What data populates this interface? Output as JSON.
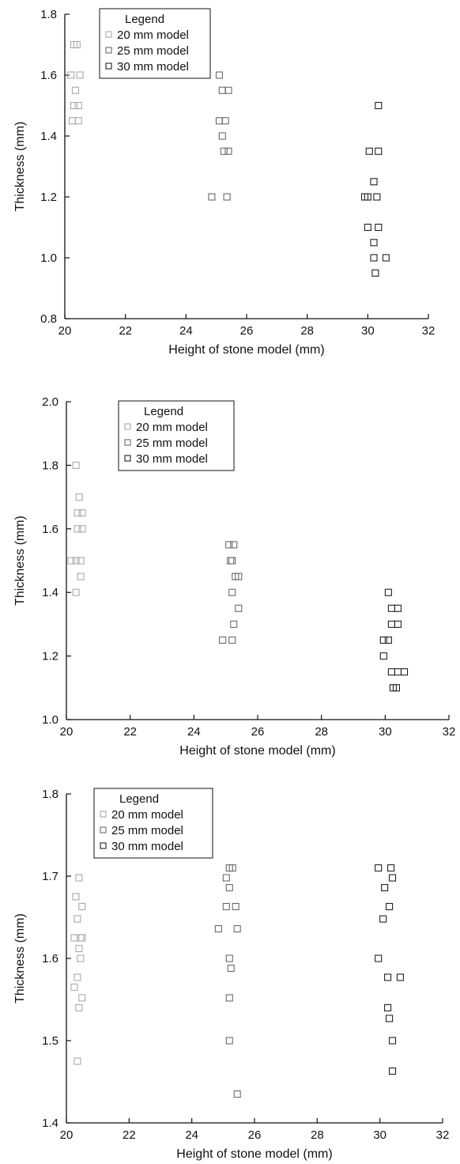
{
  "chart_data": [
    {
      "type": "scatter",
      "xlabel": "Height of stone model (mm)",
      "ylabel": "Thickness (mm)",
      "xlim": [
        20,
        32
      ],
      "ylim": [
        0.8,
        1.8
      ],
      "xticks": [
        "20",
        "22",
        "24",
        "26",
        "28",
        "30",
        "32"
      ],
      "yticks": [
        "0.8",
        "1.0",
        "1.2",
        "1.4",
        "1.6",
        "1.8"
      ],
      "grid": false,
      "legend": {
        "title": "Legend",
        "entries": [
          "20 mm model",
          "25 mm model",
          "30 mm model"
        ],
        "colors": [
          "#a8a8a8",
          "#6a6a6a",
          "#222222"
        ],
        "position": "top-left"
      },
      "series": [
        {
          "name": "20 mm model",
          "points": [
            [
              20.3,
              1.7
            ],
            [
              20.4,
              1.7
            ],
            [
              20.2,
              1.6
            ],
            [
              20.5,
              1.6
            ],
            [
              20.35,
              1.55
            ],
            [
              20.3,
              1.5
            ],
            [
              20.45,
              1.5
            ],
            [
              20.25,
              1.45
            ],
            [
              20.45,
              1.45
            ]
          ]
        },
        {
          "name": "25 mm model",
          "points": [
            [
              25.1,
              1.6
            ],
            [
              25.2,
              1.55
            ],
            [
              25.4,
              1.55
            ],
            [
              25.1,
              1.45
            ],
            [
              25.3,
              1.45
            ],
            [
              25.2,
              1.4
            ],
            [
              25.25,
              1.35
            ],
            [
              25.4,
              1.35
            ],
            [
              24.85,
              1.2
            ],
            [
              25.35,
              1.2
            ]
          ]
        },
        {
          "name": "30 mm model",
          "points": [
            [
              30.35,
              1.5
            ],
            [
              30.05,
              1.35
            ],
            [
              30.35,
              1.35
            ],
            [
              30.2,
              1.25
            ],
            [
              29.9,
              1.2
            ],
            [
              30.0,
              1.2
            ],
            [
              30.3,
              1.2
            ],
            [
              30.0,
              1.1
            ],
            [
              30.35,
              1.1
            ],
            [
              30.2,
              1.05
            ],
            [
              30.2,
              1.0
            ],
            [
              30.6,
              1.0
            ],
            [
              30.25,
              0.95
            ]
          ]
        }
      ]
    },
    {
      "type": "scatter",
      "xlabel": "Height of stone model (mm)",
      "ylabel": "Thickness (mm)",
      "xlim": [
        20,
        32
      ],
      "ylim": [
        1.0,
        2.0
      ],
      "xticks": [
        "20",
        "22",
        "24",
        "26",
        "28",
        "30",
        "32"
      ],
      "yticks": [
        "1.0",
        "1.2",
        "1.4",
        "1.6",
        "1.8",
        "2.0"
      ],
      "grid": false,
      "legend": {
        "title": "Legend",
        "entries": [
          "20 mm model",
          "25 mm model",
          "30 mm model"
        ],
        "colors": [
          "#a8a8a8",
          "#6a6a6a",
          "#222222"
        ],
        "position": "top-left"
      },
      "series": [
        {
          "name": "20 mm model",
          "points": [
            [
              20.3,
              1.8
            ],
            [
              20.4,
              1.7
            ],
            [
              20.35,
              1.65
            ],
            [
              20.5,
              1.65
            ],
            [
              20.35,
              1.6
            ],
            [
              20.5,
              1.6
            ],
            [
              20.15,
              1.5
            ],
            [
              20.3,
              1.5
            ],
            [
              20.45,
              1.5
            ],
            [
              20.45,
              1.45
            ],
            [
              20.3,
              1.4
            ]
          ]
        },
        {
          "name": "25 mm model",
          "points": [
            [
              25.1,
              1.55
            ],
            [
              25.25,
              1.55
            ],
            [
              25.15,
              1.5
            ],
            [
              25.2,
              1.5
            ],
            [
              25.3,
              1.45
            ],
            [
              25.4,
              1.45
            ],
            [
              25.2,
              1.4
            ],
            [
              25.4,
              1.35
            ],
            [
              25.25,
              1.3
            ],
            [
              24.9,
              1.25
            ],
            [
              25.2,
              1.25
            ]
          ]
        },
        {
          "name": "30 mm model",
          "points": [
            [
              30.1,
              1.4
            ],
            [
              30.2,
              1.35
            ],
            [
              30.4,
              1.35
            ],
            [
              30.2,
              1.3
            ],
            [
              30.4,
              1.3
            ],
            [
              29.95,
              1.25
            ],
            [
              30.1,
              1.25
            ],
            [
              29.95,
              1.2
            ],
            [
              30.2,
              1.15
            ],
            [
              30.4,
              1.15
            ],
            [
              30.6,
              1.15
            ],
            [
              30.25,
              1.1
            ],
            [
              30.35,
              1.1
            ]
          ]
        }
      ]
    },
    {
      "type": "scatter",
      "xlabel": "Height of stone model (mm)",
      "ylabel": "Thickness (mm)",
      "xlim": [
        20,
        32
      ],
      "ylim": [
        1.4,
        1.8
      ],
      "xticks": [
        "20",
        "22",
        "24",
        "26",
        "28",
        "30",
        "32"
      ],
      "yticks": [
        "1.4",
        "1.5",
        "1.6",
        "1.7",
        "1.8"
      ],
      "grid": false,
      "legend": {
        "title": "Legend",
        "entries": [
          "20 mm model",
          "25 mm model",
          "30 mm model"
        ],
        "colors": [
          "#a8a8a8",
          "#6a6a6a",
          "#222222"
        ],
        "position": "top-left"
      },
      "series": [
        {
          "name": "20 mm model",
          "points": [
            [
              20.4,
              1.698
            ],
            [
              20.3,
              1.675
            ],
            [
              20.5,
              1.663
            ],
            [
              20.35,
              1.648
            ],
            [
              20.25,
              1.625
            ],
            [
              20.45,
              1.625
            ],
            [
              20.5,
              1.625
            ],
            [
              20.4,
              1.612
            ],
            [
              20.45,
              1.6
            ],
            [
              20.35,
              1.577
            ],
            [
              20.5,
              1.552
            ],
            [
              20.25,
              1.565
            ],
            [
              20.4,
              1.54
            ],
            [
              20.35,
              1.475
            ]
          ]
        },
        {
          "name": "25 mm model",
          "points": [
            [
              25.2,
              1.71
            ],
            [
              25.3,
              1.71
            ],
            [
              25.1,
              1.698
            ],
            [
              25.2,
              1.686
            ],
            [
              25.1,
              1.663
            ],
            [
              25.4,
              1.663
            ],
            [
              24.85,
              1.636
            ],
            [
              25.45,
              1.636
            ],
            [
              25.2,
              1.6
            ],
            [
              25.25,
              1.588
            ],
            [
              25.2,
              1.552
            ],
            [
              25.2,
              1.5
            ],
            [
              25.45,
              1.435
            ]
          ]
        },
        {
          "name": "30 mm model",
          "points": [
            [
              29.95,
              1.71
            ],
            [
              30.35,
              1.71
            ],
            [
              30.4,
              1.698
            ],
            [
              30.15,
              1.686
            ],
            [
              30.3,
              1.663
            ],
            [
              30.1,
              1.648
            ],
            [
              29.95,
              1.6
            ],
            [
              30.25,
              1.577
            ],
            [
              30.65,
              1.577
            ],
            [
              30.25,
              1.54
            ],
            [
              30.3,
              1.527
            ],
            [
              30.4,
              1.5
            ],
            [
              30.4,
              1.463
            ]
          ]
        }
      ]
    }
  ]
}
